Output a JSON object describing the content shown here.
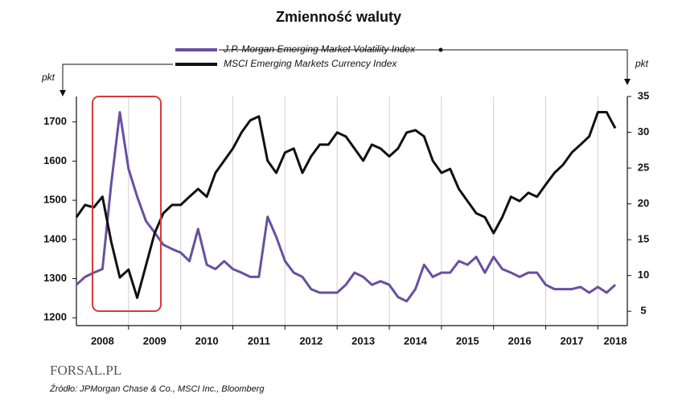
{
  "chart_data": {
    "type": "line",
    "title": "Zmienność waluty",
    "ylabel": "pkt",
    "y2label": "pkt",
    "source": "Źródło: JPMorgan Chase & Co., MSCI Inc., Bloomberg",
    "logo": "FORSAL.PL",
    "categories": [
      null,
      null,
      null,
      "2008",
      null,
      null,
      null,
      null,
      null,
      "2009",
      null,
      null,
      null,
      null,
      null,
      "2010",
      null,
      null,
      null,
      null,
      null,
      "2011",
      null,
      null,
      null,
      null,
      null,
      "2012",
      null,
      null,
      null,
      null,
      null,
      "2013",
      null,
      null,
      null,
      null,
      null,
      "2014",
      null,
      null,
      null,
      null,
      null,
      "2015",
      null,
      null,
      null,
      null,
      null,
      "2016",
      null,
      null,
      null,
      null,
      null,
      "2017",
      null,
      null,
      null,
      null,
      "2018"
    ],
    "series": [
      {
        "name": "J.P. Morgan Emerging Market Volatility Index",
        "color": "#6a4fa0",
        "axis": "y2",
        "values": [
          8.7,
          9.8,
          10.4,
          10.9,
          22.7,
          32.8,
          24.9,
          21.0,
          17.6,
          16.0,
          14.3,
          13.7,
          13.2,
          12.0,
          16.5,
          11.5,
          10.9,
          12.0,
          10.9,
          10.4,
          9.8,
          9.8,
          18.2,
          15.4,
          12.0,
          10.4,
          9.8,
          8.1,
          7.6,
          7.6,
          7.6,
          8.7,
          10.4,
          9.8,
          8.7,
          9.2,
          8.7,
          7.0,
          6.4,
          8.1,
          11.5,
          9.8,
          10.4,
          10.4,
          12.0,
          11.5,
          12.6,
          10.4,
          12.6,
          10.9,
          10.4,
          9.8,
          10.4,
          10.4,
          8.7,
          8.1,
          8.1,
          8.1,
          8.4,
          7.6,
          8.4,
          7.6,
          8.7
        ]
      },
      {
        "name": "MSCI Emerging Markets Currency Index",
        "color": "#111111",
        "values": [
          1457,
          1488,
          1482,
          1509,
          1395,
          1303,
          1323,
          1251,
          1334,
          1416,
          1467,
          1488,
          1488,
          1509,
          1529,
          1509,
          1570,
          1601,
          1632,
          1673,
          1704,
          1714,
          1601,
          1570,
          1622,
          1632,
          1570,
          1612,
          1642,
          1642,
          1673,
          1663,
          1632,
          1601,
          1642,
          1632,
          1612,
          1632,
          1673,
          1679,
          1663,
          1601,
          1570,
          1580,
          1529,
          1498,
          1467,
          1457,
          1416,
          1457,
          1509,
          1498,
          1519,
          1509,
          1540,
          1570,
          1591,
          1622,
          1642,
          1663,
          1725,
          1725,
          1684
        ]
      }
    ],
    "ylim": [
      1180,
      1765
    ],
    "yticks": [
      1200,
      1300,
      1400,
      1500,
      1600,
      1700
    ],
    "y2lim": [
      3,
      35
    ],
    "y2ticks": [
      5,
      10,
      15,
      20,
      25,
      30,
      35
    ],
    "grid": true
  }
}
